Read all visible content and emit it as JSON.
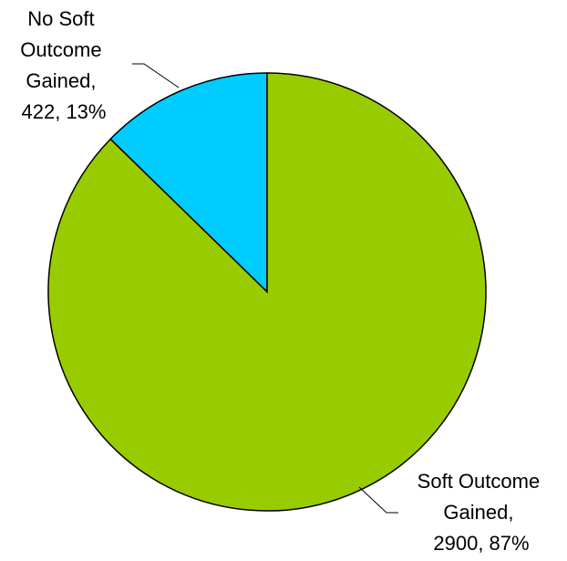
{
  "chart_data": {
    "type": "pie",
    "title": "",
    "legend": "none",
    "slices": [
      {
        "label": "No Soft Outcome Gained",
        "value": 422,
        "percent": "13%",
        "color": "#00CCFF",
        "label_lines": [
          "No Soft",
          "Outcome",
          "Gained,",
          "422, 13%"
        ]
      },
      {
        "label": "Soft Outcome Gained",
        "value": 2900,
        "percent": "87%",
        "color": "#99CC00",
        "label_lines": [
          "Soft Outcome",
          "Gained,",
          "2900, 87%"
        ]
      }
    ]
  }
}
